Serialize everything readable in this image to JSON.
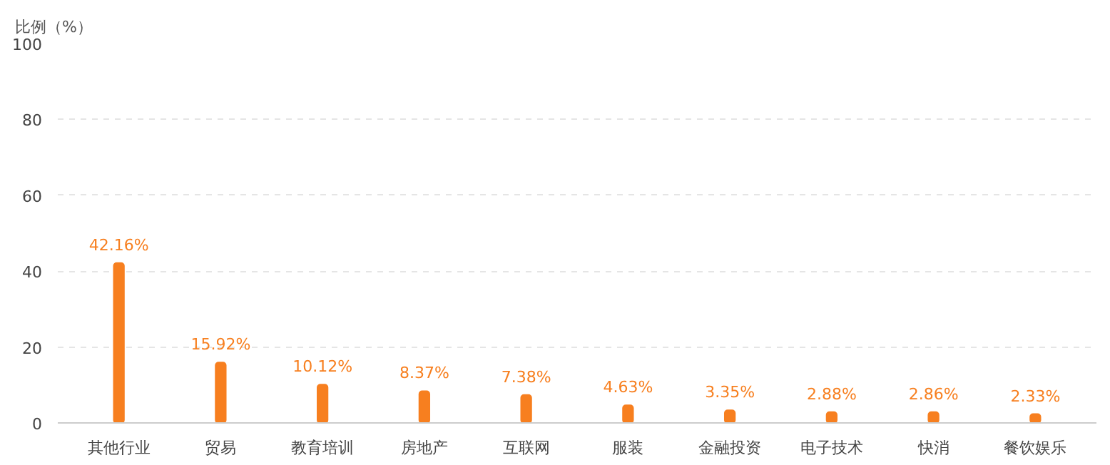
{
  "chart_data": {
    "type": "bar",
    "ylabel": "比例（%）",
    "categories": [
      "其他行业",
      "贸易",
      "教育培训",
      "房地产",
      "互联网",
      "服装",
      "金融投资",
      "电子技术",
      "快消",
      "餐饮娱乐"
    ],
    "values": [
      42.16,
      15.92,
      10.12,
      8.37,
      7.38,
      4.63,
      3.35,
      2.88,
      2.86,
      2.33
    ],
    "value_labels": [
      "42.16%",
      "15.92%",
      "10.12%",
      "8.37%",
      "7.38%",
      "4.63%",
      "3.35%",
      "2.88%",
      "2.86%",
      "2.33%"
    ],
    "color": "#f77f1f",
    "ylim": [
      0,
      100
    ],
    "yticks": [
      0,
      20,
      40,
      60,
      80,
      100
    ],
    "grid": "y"
  }
}
